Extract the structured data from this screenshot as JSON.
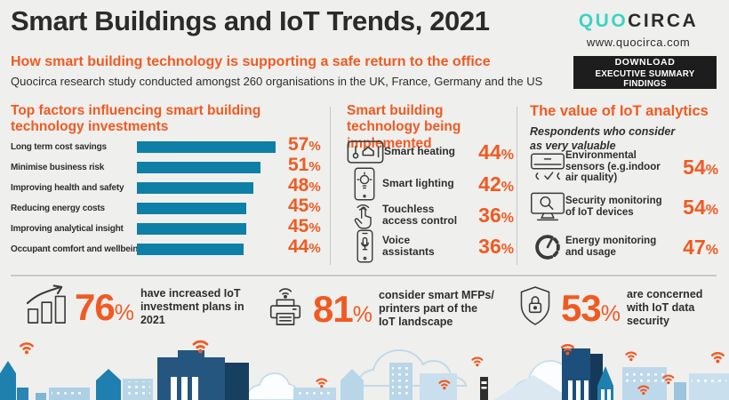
{
  "colors": {
    "accent_orange": "#F05A22",
    "bar_teal": "#0E80A7",
    "logo_teal": "#3BD4C2",
    "text_dark": "#2D2D2D",
    "background": "#EFEFED",
    "button_black": "#1D1D1D"
  },
  "header": {
    "title": "Smart Buildings and IoT Trends, 2021",
    "subtitle": "How smart building technology is supporting a safe return to the office",
    "description": "Quocirca research study conducted amongst 260 organisations in the UK, France, Germany and the US",
    "logo_part1": "QUO",
    "logo_part2": "CIRCA",
    "website": "www.quocirca.com",
    "download_line1": "DOWNLOAD",
    "download_line2": "EXECUTIVE SUMMARY FINDINGS"
  },
  "chart_data": {
    "type": "bar",
    "orientation": "horizontal",
    "title": "Top factors influencing smart building technology investments",
    "categories": [
      "Long term cost savings",
      "Minimise business risk",
      "Improving health and safety",
      "Reducing energy costs",
      "Improving analytical insight",
      "Occupant comfort and wellbeing"
    ],
    "values": [
      57,
      51,
      48,
      45,
      45,
      44
    ],
    "unit": "%",
    "axis_max": 60,
    "bar_color": "#0E80A7",
    "value_label_color": "#F05A22",
    "grid": false,
    "legend": false
  },
  "implemented": {
    "title": "Smart building technology being implemented",
    "items": [
      {
        "icon": "smart-heating-icon",
        "label": "Smart heating",
        "value": 44,
        "unit": "%"
      },
      {
        "icon": "smart-lighting-icon",
        "label": "Smart lighting",
        "value": 42,
        "unit": "%"
      },
      {
        "icon": "touchless-access-icon",
        "label": "Touchless access control",
        "value": 36,
        "unit": "%"
      },
      {
        "icon": "voice-assistant-icon",
        "label": "Voice assistants",
        "value": 36,
        "unit": "%"
      }
    ]
  },
  "analytics": {
    "title": "The value of IoT analytics",
    "subtitle": "Respondents who consider as very valuable",
    "items": [
      {
        "icon": "air-conditioner-icon",
        "label": "Environmental sensors (e.g.indoor air quality)",
        "value": 54,
        "unit": "%"
      },
      {
        "icon": "security-monitor-icon",
        "label": "Security monitoring of IoT devices",
        "value": 54,
        "unit": "%"
      },
      {
        "icon": "energy-gauge-icon",
        "label": "Energy monitoring and usage",
        "value": 47,
        "unit": "%"
      }
    ]
  },
  "bottom_stats": [
    {
      "icon": "growth-chart-icon",
      "value": 76,
      "unit": "%",
      "label": "have increased IoT investment plans in 2021"
    },
    {
      "icon": "printer-wifi-icon",
      "value": 81,
      "unit": "%",
      "label": "consider smart MFPs/ printers part of the IoT landscape"
    },
    {
      "icon": "shield-lock-icon",
      "value": 53,
      "unit": "%",
      "label": "are concerned with IoT data security"
    }
  ]
}
